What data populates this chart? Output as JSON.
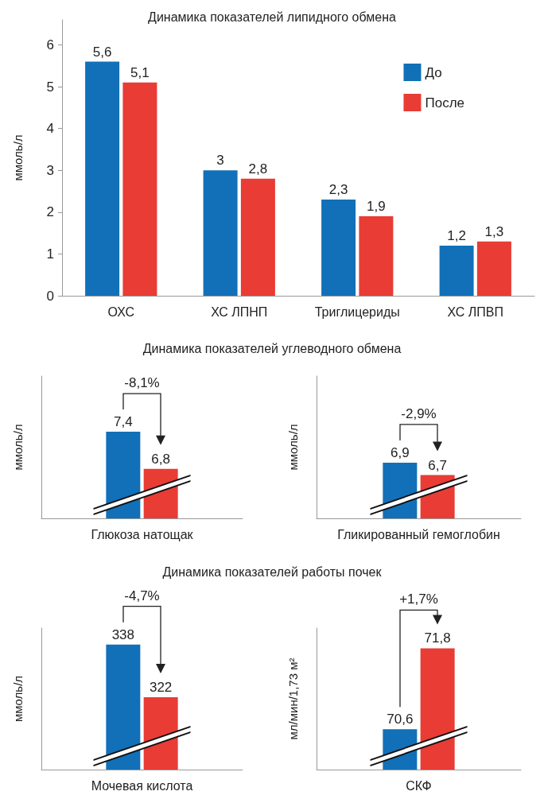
{
  "chart_data": [
    {
      "type": "bar",
      "title": "Динамика показателей липидного обмена",
      "ylabel": "ммоль/л",
      "categories": [
        "ОХС",
        "ХС ЛПНП",
        "Триглицериды",
        "ХС ЛПВП"
      ],
      "ylim": [
        0,
        6.6
      ],
      "yticks": [
        0,
        1,
        2,
        3,
        4,
        5,
        6
      ],
      "legend": "top right",
      "series": [
        {
          "name": "До",
          "color": "#1170b8",
          "values": [
            5.6,
            3,
            2.3,
            1.2
          ],
          "value_labels": [
            "5,6",
            "3",
            "2,3",
            "1,2"
          ]
        },
        {
          "name": "После",
          "color": "#e83c35",
          "values": [
            5.1,
            2.8,
            1.9,
            1.3
          ],
          "value_labels": [
            "5,1",
            "2,8",
            "1,9",
            "1,3"
          ]
        }
      ]
    },
    {
      "type": "bar",
      "title": "Динамика показателей углеводного обмена",
      "ylabel": "ммоль/л",
      "categories": [
        "Глюкоза натощак"
      ],
      "ylim": [
        6,
        8.3
      ],
      "tick_labels": "x",
      "annotations": [
        "-8,1%"
      ],
      "series": [
        {
          "color": "#1170b8",
          "values": [
            7.4
          ],
          "value_labels": [
            "7,4"
          ]
        },
        {
          "color": "#e83c35",
          "values": [
            6.8
          ],
          "value_labels": [
            "6,8"
          ]
        }
      ]
    },
    {
      "type": "bar",
      "ylabel": "ммоль/л",
      "categories": [
        "Гликированный гемоглобин"
      ],
      "ylim": [
        6,
        8.3
      ],
      "tick_labels": "x",
      "annotations": [
        "-2,9%"
      ],
      "series": [
        {
          "color": "#1170b8",
          "values": [
            6.9
          ],
          "value_labels": [
            "6,9"
          ]
        },
        {
          "color": "#e83c35",
          "values": [
            6.7
          ],
          "value_labels": [
            "6,7"
          ]
        }
      ]
    },
    {
      "type": "bar",
      "title": "Динамика показателей работы почек",
      "ylabel": "ммоль/л",
      "categories": [
        "Мочевая кислота"
      ],
      "ylim": [
        300,
        343
      ],
      "tick_labels": "x",
      "annotations": [
        "-4,7%"
      ],
      "series": [
        {
          "color": "#1170b8",
          "values": [
            338
          ],
          "value_labels": [
            "338"
          ]
        },
        {
          "color": "#e83c35",
          "values": [
            322
          ],
          "value_labels": [
            "322"
          ]
        }
      ]
    },
    {
      "type": "bar",
      "ylabel": "мл/мин/1,73 м²",
      "categories": [
        "СКФ"
      ],
      "ylim": [
        70,
        72.1
      ],
      "tick_labels": "x",
      "annotations": [
        "+1,7%"
      ],
      "series": [
        {
          "color": "#1170b8",
          "values": [
            70.6
          ],
          "value_labels": [
            "70,6"
          ]
        },
        {
          "color": "#e83c35",
          "values": [
            71.8
          ],
          "value_labels": [
            "71,8"
          ]
        }
      ]
    }
  ]
}
